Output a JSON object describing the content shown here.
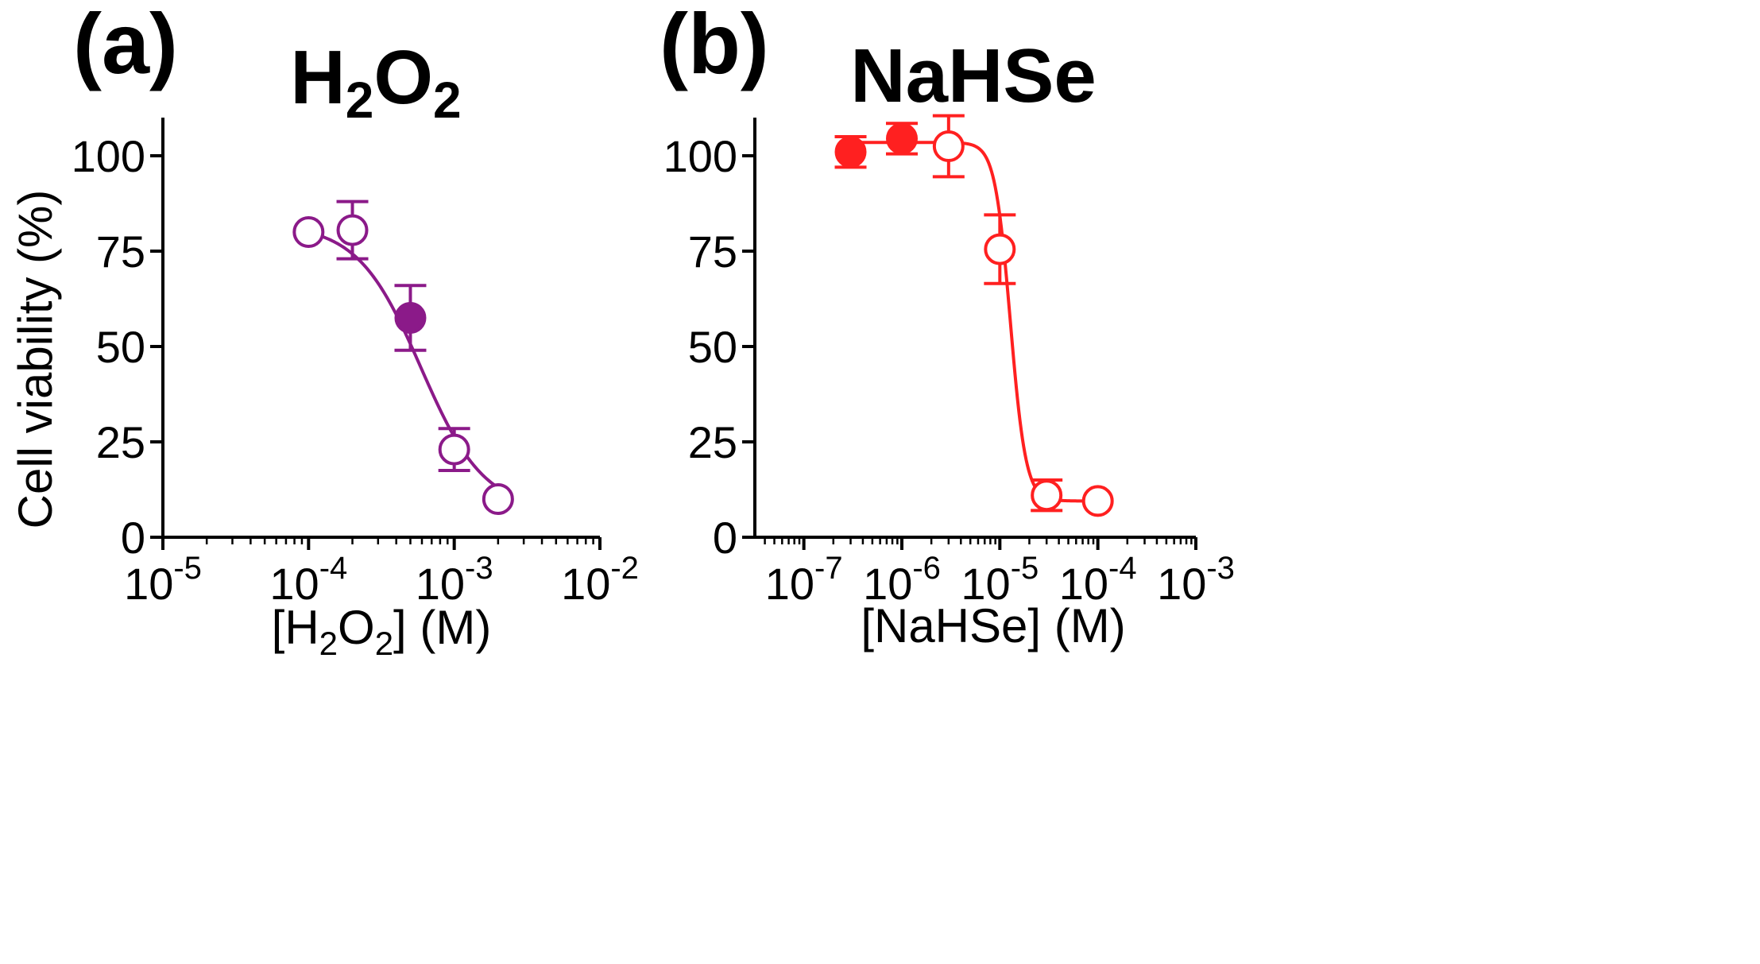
{
  "chart_data": [
    {
      "type": "scatter",
      "panel_label": "(a)",
      "title": {
        "main": "H",
        "sub1": "2",
        "mid": "O",
        "sub2": "2"
      },
      "xlabel": {
        "pre": "[H",
        "sub1": "2",
        "mid": "O",
        "sub2": "2",
        "post": "] (M)"
      },
      "ylabel": "Cell viability (%)",
      "xscale": "log",
      "xlim_exp": [
        -5,
        -2
      ],
      "ylim": [
        0,
        110
      ],
      "yticks": [
        "0",
        "25",
        "50",
        "75",
        "100"
      ],
      "xticks": [
        {
          "base": "10",
          "exp": "-5"
        },
        {
          "base": "10",
          "exp": "-4"
        },
        {
          "base": "10",
          "exp": "-3"
        },
        {
          "base": "10",
          "exp": "-2"
        }
      ],
      "color": "#8b1a89",
      "points": [
        {
          "x": 0.0001,
          "y": 80,
          "filled": false,
          "err": 0
        },
        {
          "x": 0.0002,
          "y": 80.5,
          "filled": false,
          "err": 7.5
        },
        {
          "x": 0.0005,
          "y": 57.5,
          "filled": true,
          "err": 8.5
        },
        {
          "x": 0.001,
          "y": 23,
          "filled": false,
          "err": 5.5
        },
        {
          "x": 0.002,
          "y": 10,
          "filled": false,
          "err": 0
        }
      ],
      "fit": {
        "top": 82,
        "bottom": 7,
        "ec50": 0.00059,
        "hill": 2.0
      }
    },
    {
      "type": "scatter",
      "panel_label": "(b)",
      "title": {
        "main": "NaHSe"
      },
      "xlabel": {
        "pre": "[NaHSe] (M)"
      },
      "ylabel": "",
      "xscale": "log",
      "xlim_exp": [
        -7.5,
        -3
      ],
      "ylim": [
        0,
        110
      ],
      "yticks": [
        "0",
        "25",
        "50",
        "75",
        "100"
      ],
      "xticks": [
        {
          "base": "10",
          "exp": "-7"
        },
        {
          "base": "10",
          "exp": "-6"
        },
        {
          "base": "10",
          "exp": "-5"
        },
        {
          "base": "10",
          "exp": "-4"
        },
        {
          "base": "10",
          "exp": "-3"
        }
      ],
      "color": "#ff2020",
      "points": [
        {
          "x": 3e-07,
          "y": 101,
          "filled": true,
          "err": 4
        },
        {
          "x": 1e-06,
          "y": 104.5,
          "filled": true,
          "err": 4
        },
        {
          "x": 3e-06,
          "y": 102.5,
          "filled": false,
          "err": 8
        },
        {
          "x": 1e-05,
          "y": 75.5,
          "filled": false,
          "err": 9
        },
        {
          "x": 3e-05,
          "y": 11,
          "filled": false,
          "err": 4
        },
        {
          "x": 0.0001,
          "y": 9.5,
          "filled": false,
          "err": 0
        }
      ],
      "fit": {
        "top": 103.5,
        "bottom": 9.5,
        "ec50": 1.28e-05,
        "hill": 5.5
      }
    }
  ]
}
